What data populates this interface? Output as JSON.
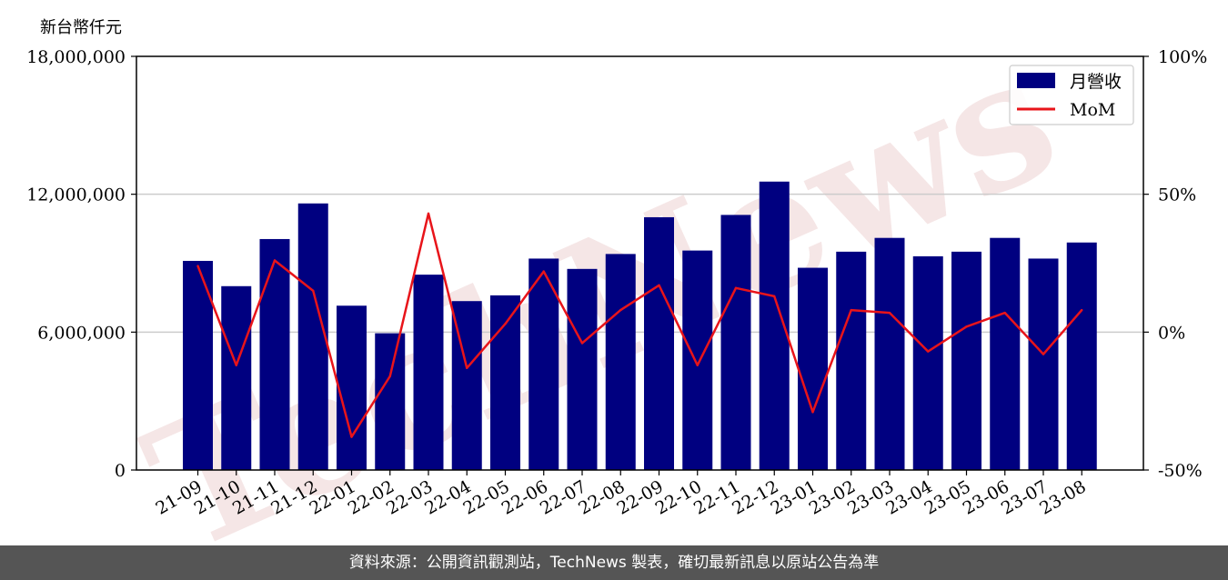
{
  "unit_label": "新台幣仟元",
  "footer": "資料來源：公開資訊觀測站，TechNews 製表，確切最新訊息以原站公告為準",
  "watermark": "TechNews",
  "colors": {
    "bar": "#000080",
    "line": "#e8141a",
    "grid": "#cccccc",
    "footer_bg": "#555555",
    "watermark": "#f2dede"
  },
  "chart_data": {
    "type": "bar",
    "categories": [
      "21-09",
      "21-10",
      "21-11",
      "21-12",
      "22-01",
      "22-02",
      "22-03",
      "22-04",
      "22-05",
      "22-06",
      "22-07",
      "22-08",
      "22-09",
      "22-10",
      "22-11",
      "22-12",
      "23-01",
      "23-02",
      "23-03",
      "23-04",
      "23-05",
      "23-06",
      "23-07",
      "23-08"
    ],
    "series": [
      {
        "name": "月營收",
        "type": "bar",
        "axis": "left",
        "values": [
          9100000,
          8000000,
          10050000,
          11600000,
          7150000,
          5950000,
          8500000,
          7350000,
          7600000,
          9200000,
          8750000,
          9400000,
          11000000,
          9550000,
          11100000,
          12550000,
          8800000,
          9500000,
          10100000,
          9300000,
          9500000,
          10100000,
          9200000,
          9900000
        ]
      },
      {
        "name": "MoM",
        "type": "line",
        "axis": "right",
        "values": [
          24,
          -12,
          26,
          15,
          -38,
          -16,
          43,
          -13,
          3,
          22,
          -4,
          8,
          17,
          -12,
          16,
          13,
          -29,
          8,
          7,
          -7,
          2,
          7,
          -8,
          8
        ]
      }
    ],
    "y_left": {
      "ylim": [
        0,
        18000000
      ],
      "ticks": [
        0,
        6000000,
        12000000,
        18000000
      ],
      "tick_labels": [
        "0",
        "6,000,000",
        "12,000,000",
        "18,000,000"
      ]
    },
    "y_right": {
      "ylim": [
        -50,
        100
      ],
      "ticks": [
        -50,
        0,
        50,
        100
      ],
      "tick_labels": [
        "-50%",
        "0%",
        "50%",
        "100%"
      ]
    },
    "grid": "horizontal",
    "legend": "top-right"
  }
}
